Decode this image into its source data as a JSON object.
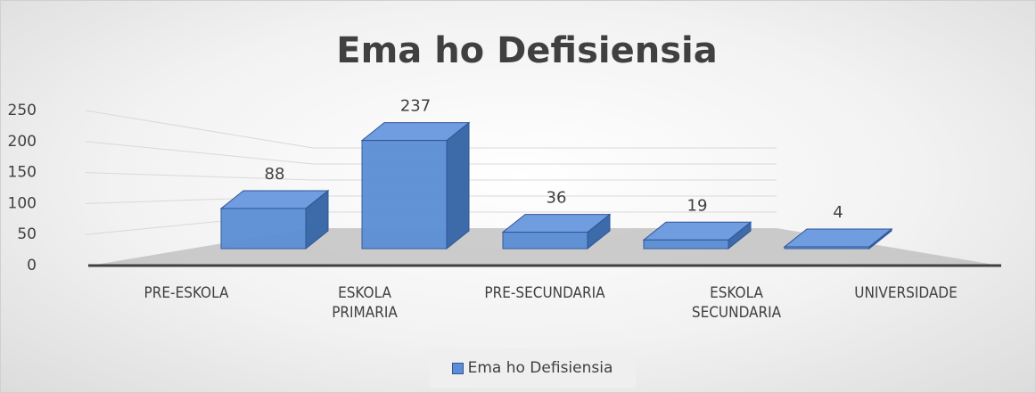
{
  "chart_data": {
    "type": "bar3d",
    "title": "Ema ho Defisiensia",
    "categories": [
      "PRE-ESKOLA",
      "ESKOLA PRIMARIA",
      "PRE-SECUNDARIA",
      "ESKOLA SECUNDARIA",
      "UNIVERSIDADE"
    ],
    "series": [
      {
        "name": "Ema ho Defisiensia",
        "color": "#5b8ed6",
        "values": [
          88,
          237,
          36,
          19,
          4
        ]
      }
    ],
    "ylim": [
      0,
      250
    ],
    "yticks": [
      0,
      50,
      100,
      150,
      200,
      250
    ],
    "grid": true,
    "legend": "bottom",
    "data_labels": true
  }
}
